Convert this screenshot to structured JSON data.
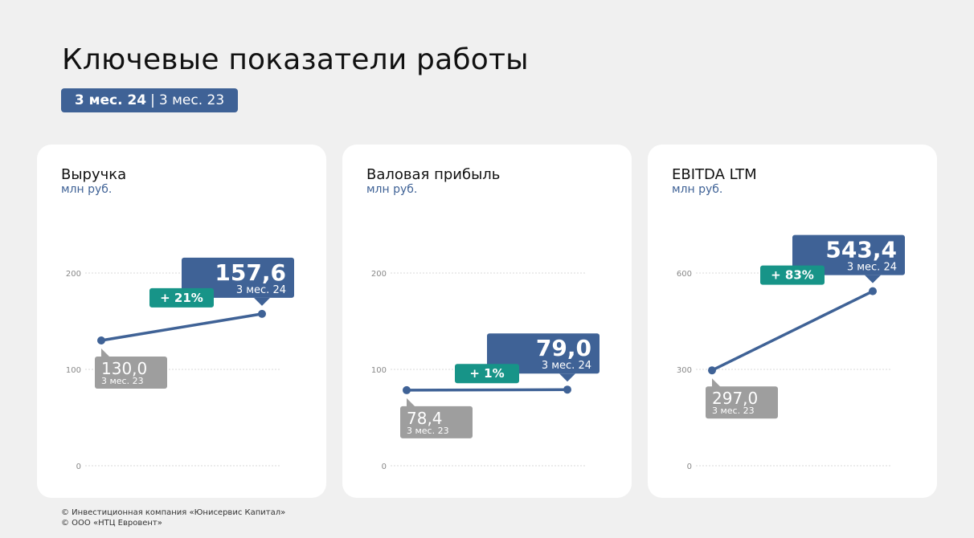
{
  "title": "Ключевые показатели работы",
  "period_selector": {
    "current": "3 мес. 24",
    "separator": "|",
    "previous": "3 мес. 23"
  },
  "colors": {
    "accent": "#3f6296",
    "growth": "#179488",
    "previous": "#9e9e9e",
    "grid": "#d8d8d8"
  },
  "footer": {
    "line1": "© Инвестиционная компания «Юнисервис Капитал»",
    "line2": "© ООО «НТЦ Евровент»"
  },
  "chart_data": [
    {
      "type": "line",
      "title": "Выручка",
      "unit": "млн руб.",
      "x": [
        "3 мес. 23",
        "3 мес. 24"
      ],
      "values": [
        130.0,
        157.6
      ],
      "value_labels": [
        "130,0",
        "157,6"
      ],
      "ylim": [
        0,
        200
      ],
      "yticks": [
        0,
        100,
        200
      ],
      "growth_label": "+ 21%",
      "grid": true
    },
    {
      "type": "line",
      "title": "Валовая прибыль",
      "unit": "млн руб.",
      "x": [
        "3 мес. 23",
        "3 мес. 24"
      ],
      "values": [
        78.4,
        79.0
      ],
      "value_labels": [
        "78,4",
        "79,0"
      ],
      "ylim": [
        0,
        200
      ],
      "yticks": [
        0,
        100,
        200
      ],
      "growth_label": "+ 1%",
      "grid": true
    },
    {
      "type": "line",
      "title": "EBITDA LTM",
      "unit": "млн руб.",
      "x": [
        "3 мес. 23",
        "3 мес. 24"
      ],
      "values": [
        297.0,
        543.4
      ],
      "value_labels": [
        "297,0",
        "543,4"
      ],
      "ylim": [
        0,
        600
      ],
      "yticks": [
        0,
        300,
        600
      ],
      "growth_label": "+ 83%",
      "grid": true
    }
  ]
}
